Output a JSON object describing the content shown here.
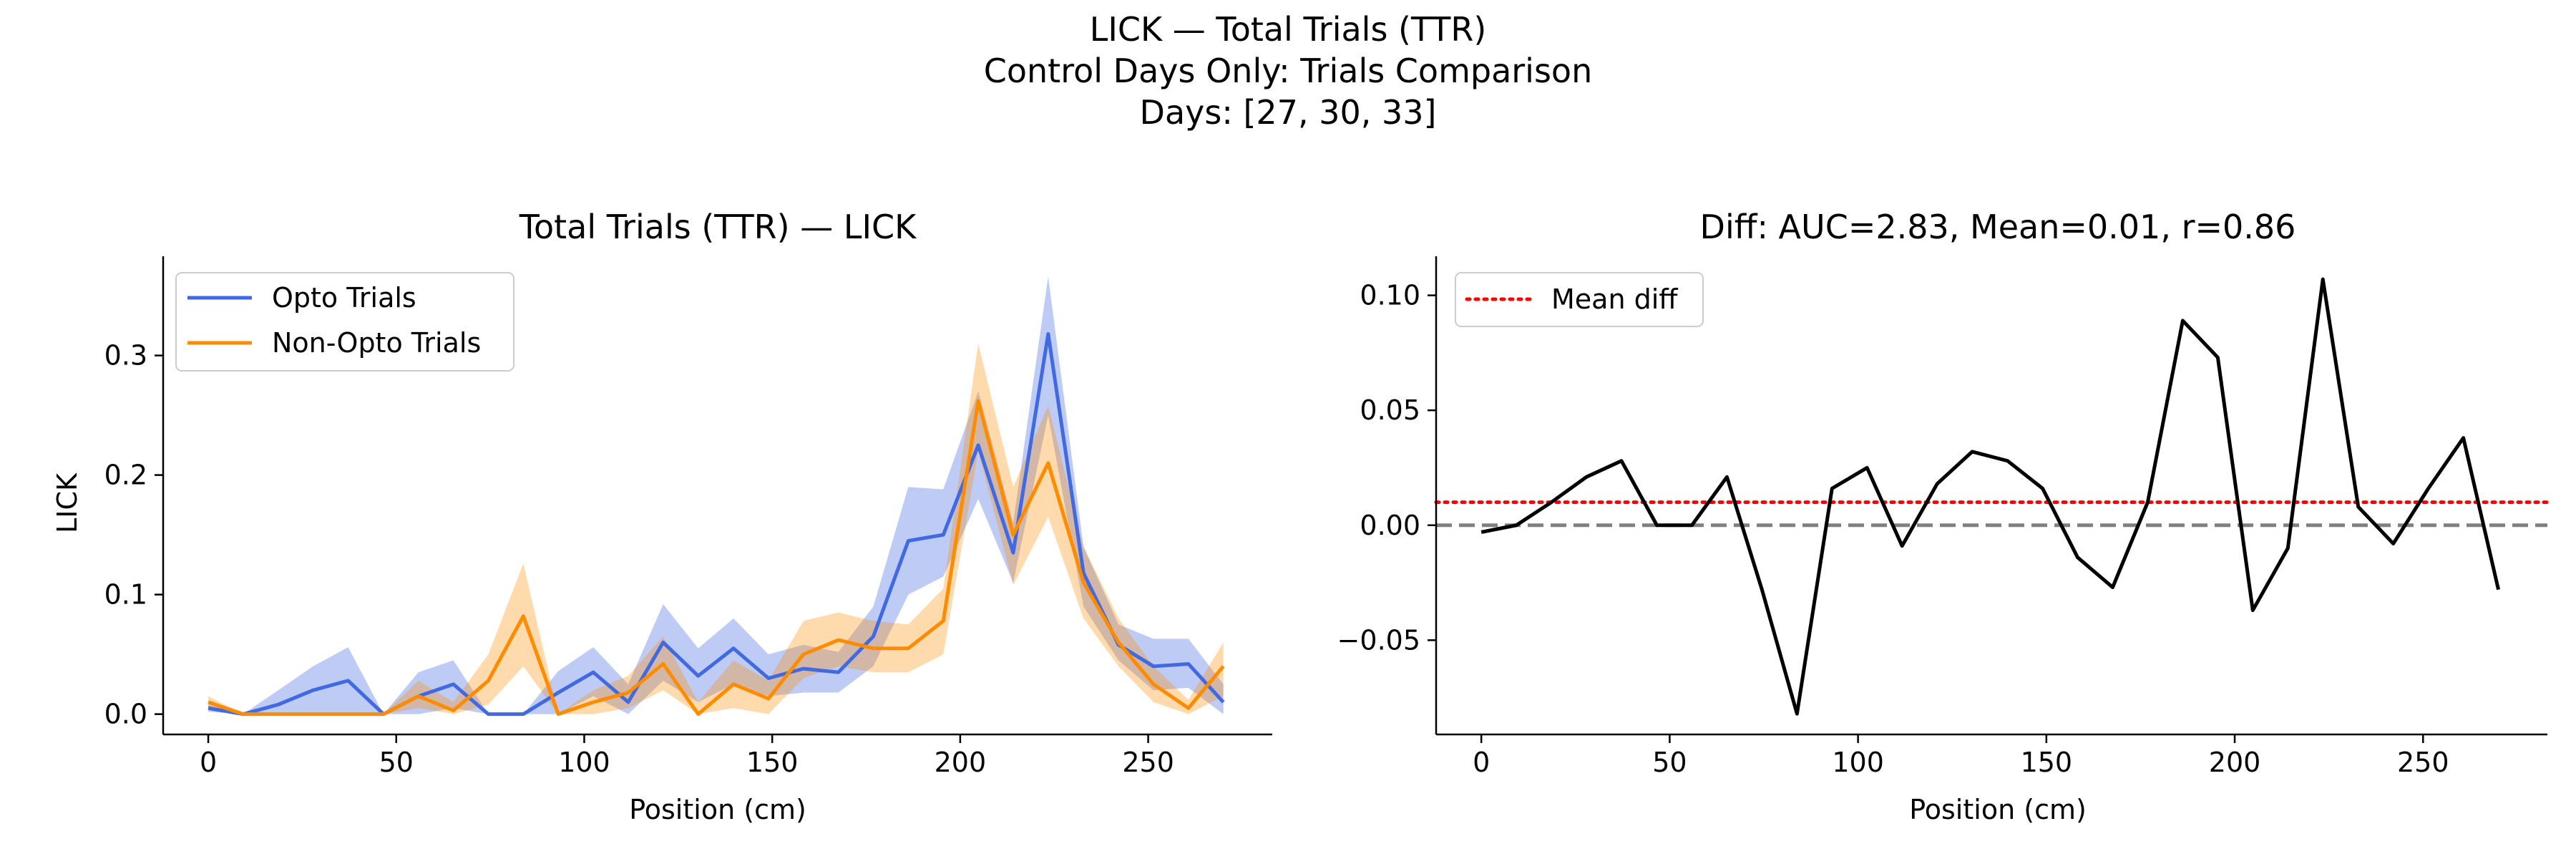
{
  "figure": {
    "title_line1": "LICK — Total Trials (TTR)",
    "title_line2": "Control Days Only: Trials Comparison",
    "title_line3": "Days: [27, 30, 33]"
  },
  "colors": {
    "opto": "#4169E1",
    "non_opto": "#FF8C00",
    "diff_line": "#000000",
    "mean_line": "#FF0000",
    "zero_line": "#808080"
  },
  "chart_data": [
    {
      "type": "line",
      "title": "Total Trials (TTR) — LICK",
      "xlabel": "Position (cm)",
      "ylabel": "LICK",
      "xlim": [
        -12,
        283
      ],
      "ylim": [
        -0.017,
        0.383
      ],
      "xticks": [
        0,
        50,
        100,
        150,
        200,
        250
      ],
      "yticks": [
        0.0,
        0.1,
        0.2,
        0.3
      ],
      "ytick_labels": [
        "0.0",
        "0.1",
        "0.2",
        "0.3"
      ],
      "grid": false,
      "legend_position": "top-left",
      "x": [
        0,
        9.3,
        18.6,
        27.9,
        37.2,
        46.6,
        55.9,
        65.2,
        74.5,
        83.8,
        93.1,
        102.4,
        111.7,
        121.0,
        130.3,
        139.7,
        149.0,
        158.3,
        167.6,
        176.9,
        186.2,
        195.5,
        204.8,
        214.1,
        223.4,
        232.8,
        242.1,
        251.4,
        260.7,
        270.0
      ],
      "series": [
        {
          "name": "Opto Trials",
          "color": "#4169E1",
          "values": [
            0.005,
            0.0,
            0.008,
            0.02,
            0.028,
            0.0,
            0.015,
            0.025,
            0.0,
            0.0,
            0.018,
            0.035,
            0.01,
            0.06,
            0.032,
            0.055,
            0.03,
            0.038,
            0.035,
            0.065,
            0.145,
            0.15,
            0.225,
            0.135,
            0.318,
            0.118,
            0.058,
            0.04,
            0.042,
            0.01
          ],
          "lower": [
            0.002,
            0.0,
            0.0,
            0.0,
            0.0,
            0.0,
            0.0,
            0.005,
            0.0,
            0.0,
            0.0,
            0.015,
            0.0,
            0.028,
            0.01,
            0.025,
            0.015,
            0.018,
            0.018,
            0.04,
            0.1,
            0.115,
            0.18,
            0.11,
            0.25,
            0.09,
            0.045,
            0.02,
            0.022,
            0.0
          ],
          "upper": [
            0.008,
            0.0,
            0.02,
            0.04,
            0.056,
            0.0,
            0.035,
            0.045,
            0.0,
            0.0,
            0.036,
            0.056,
            0.025,
            0.092,
            0.055,
            0.08,
            0.05,
            0.058,
            0.052,
            0.09,
            0.19,
            0.188,
            0.27,
            0.16,
            0.366,
            0.14,
            0.075,
            0.063,
            0.063,
            0.025
          ]
        },
        {
          "name": "Non-Opto Trials",
          "color": "#FF8C00",
          "values": [
            0.01,
            0.0,
            0.0,
            0.0,
            0.0,
            0.0,
            0.015,
            0.003,
            0.028,
            0.082,
            0.0,
            0.01,
            0.018,
            0.042,
            0.0,
            0.025,
            0.013,
            0.05,
            0.062,
            0.055,
            0.055,
            0.078,
            0.262,
            0.15,
            0.21,
            0.11,
            0.06,
            0.025,
            0.005,
            0.04
          ],
          "lower": [
            0.005,
            0.0,
            0.0,
            0.0,
            0.0,
            0.0,
            0.005,
            0.0,
            0.008,
            0.04,
            0.0,
            0.0,
            0.005,
            0.02,
            0.0,
            0.005,
            0.0,
            0.03,
            0.04,
            0.035,
            0.035,
            0.05,
            0.22,
            0.108,
            0.165,
            0.08,
            0.04,
            0.01,
            0.0,
            0.015
          ],
          "upper": [
            0.015,
            0.0,
            0.0,
            0.0,
            0.0,
            0.0,
            0.028,
            0.01,
            0.05,
            0.126,
            0.0,
            0.02,
            0.032,
            0.065,
            0.01,
            0.045,
            0.028,
            0.078,
            0.085,
            0.078,
            0.075,
            0.105,
            0.31,
            0.19,
            0.258,
            0.14,
            0.08,
            0.04,
            0.012,
            0.06
          ]
        }
      ]
    },
    {
      "type": "line",
      "title": "Diff: AUC=2.83, Mean=0.01, r=0.86",
      "xlabel": "Position (cm)",
      "ylabel": "",
      "xlim": [
        -12,
        283
      ],
      "ylim": [
        -0.091,
        0.117
      ],
      "xticks": [
        0,
        50,
        100,
        150,
        200,
        250
      ],
      "yticks": [
        -0.05,
        0.0,
        0.05,
        0.1
      ],
      "ytick_labels": [
        "−0.05",
        "0.00",
        "0.05",
        "0.10"
      ],
      "grid": false,
      "legend_position": "top-left",
      "x": [
        0,
        9.3,
        18.6,
        27.9,
        37.2,
        46.6,
        55.9,
        65.2,
        74.5,
        83.8,
        93.1,
        102.4,
        111.7,
        121.0,
        130.3,
        139.7,
        149.0,
        158.3,
        167.6,
        176.9,
        186.2,
        195.5,
        204.8,
        214.1,
        223.4,
        232.8,
        242.1,
        251.4,
        260.7,
        270.0
      ],
      "values": [
        -0.003,
        0.0,
        0.01,
        0.021,
        0.028,
        0.0,
        0.0,
        0.021,
        -0.028,
        -0.082,
        0.016,
        0.025,
        -0.009,
        0.018,
        0.032,
        0.028,
        0.016,
        -0.014,
        -0.027,
        0.01,
        0.089,
        0.073,
        -0.037,
        -0.01,
        0.107,
        0.008,
        -0.008,
        0.016,
        0.038,
        -0.028
      ],
      "mean_diff": 0.01,
      "zero_line": 0.0,
      "legend": [
        "Mean diff"
      ]
    }
  ]
}
